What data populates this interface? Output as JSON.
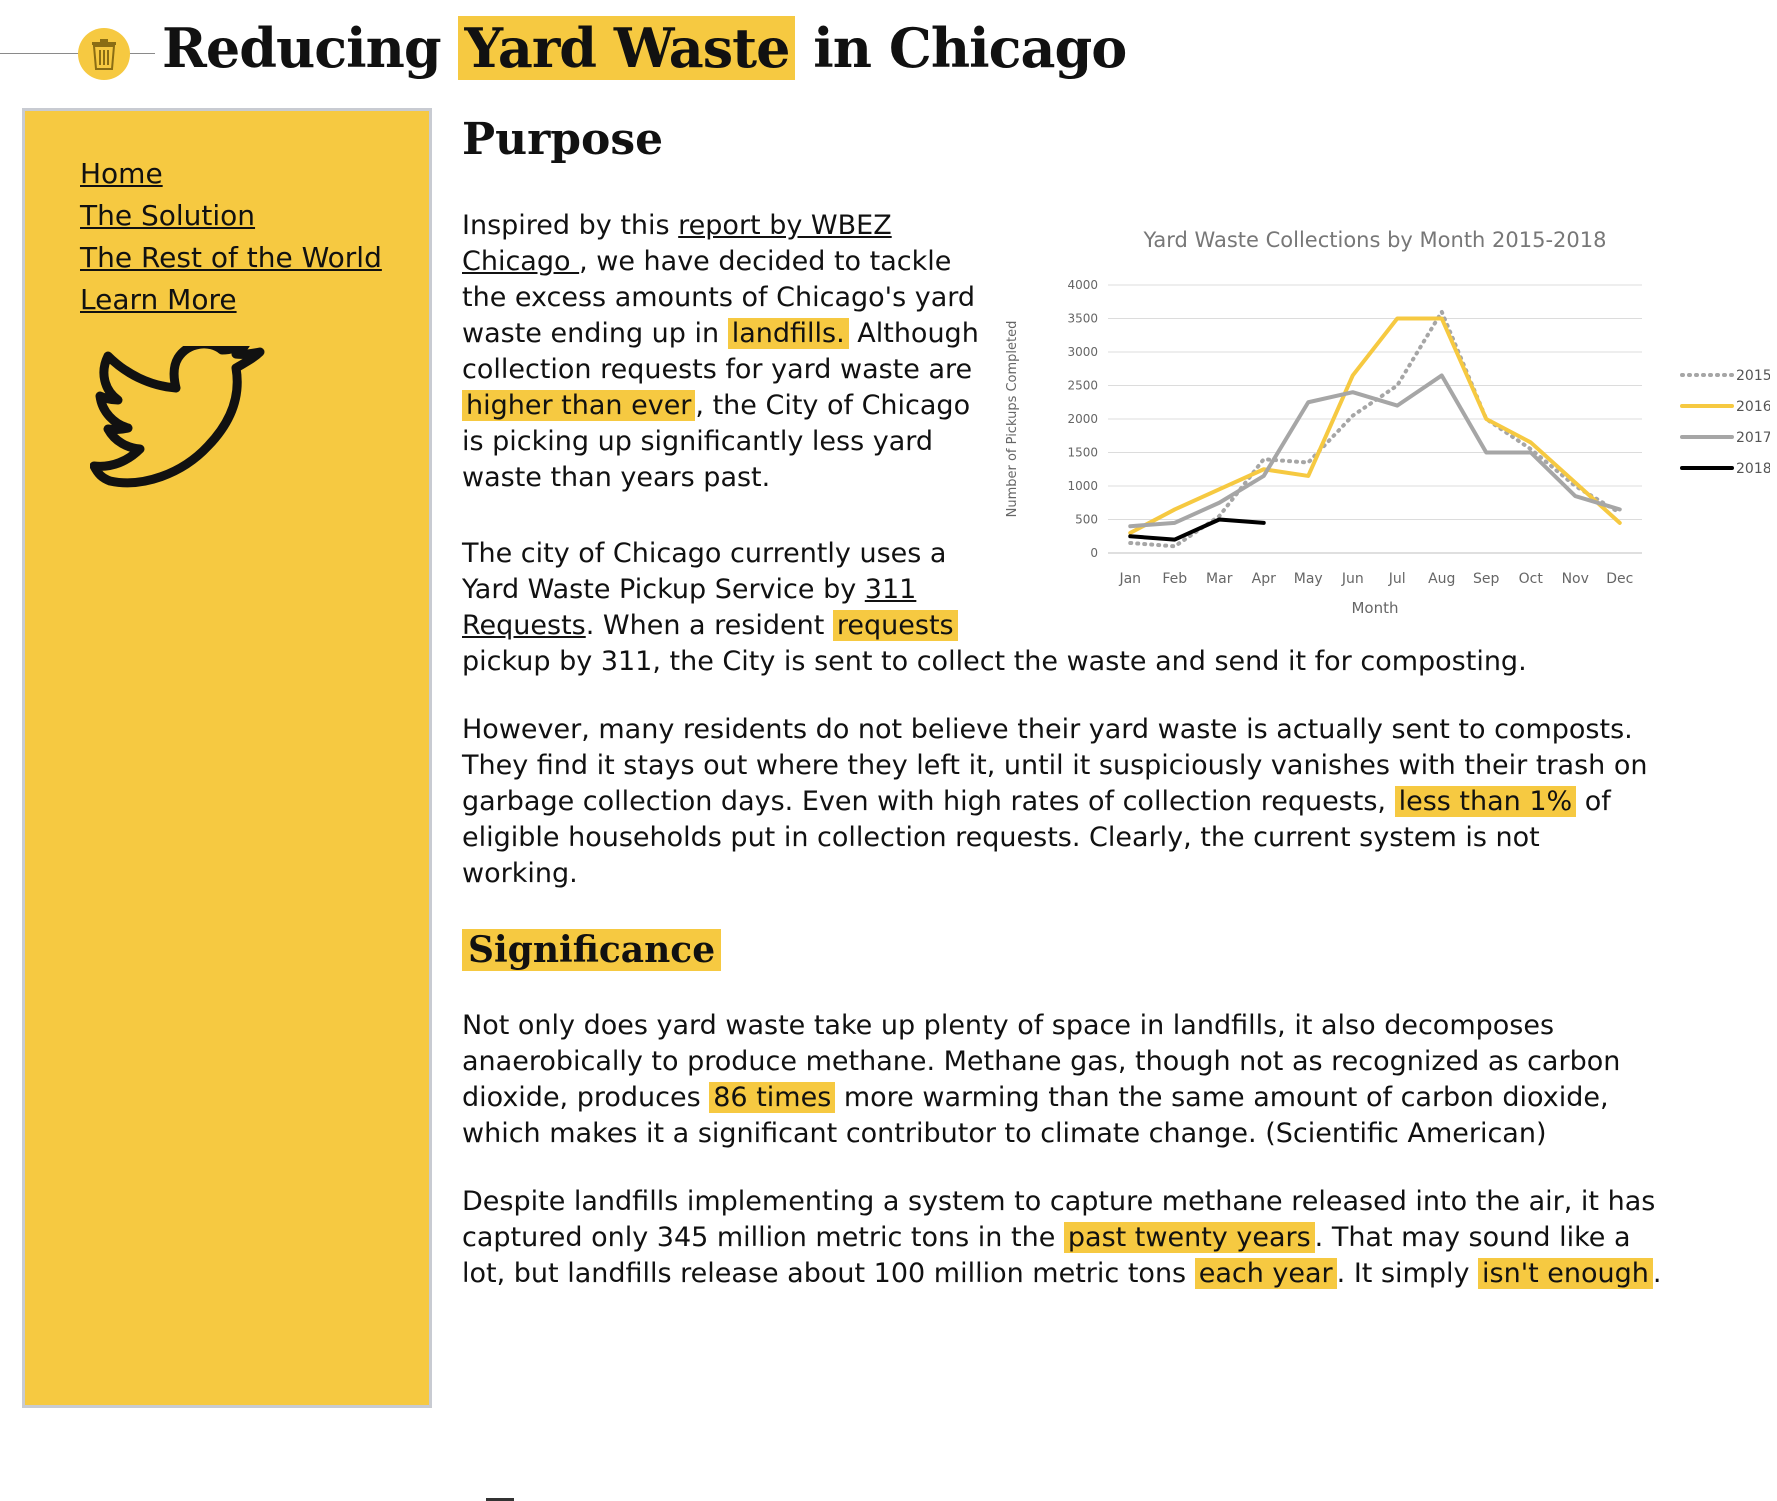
{
  "header": {
    "title_before": "Reducing",
    "title_highlight": "Yard Waste",
    "title_after": "in Chicago",
    "icon": "trash-can-icon"
  },
  "sidebar": {
    "links": [
      "Home",
      "The Solution",
      "The Rest of the World",
      "Learn More"
    ],
    "social_icon": "twitter-bird-icon"
  },
  "purpose": {
    "heading": "Purpose",
    "p1": {
      "t1": "Inspired by this ",
      "link": "report by WBEZ Chicago ",
      "t2": ", we have decided to tackle the excess amounts of Chicago's yard waste ending up in ",
      "h1": "landfills.",
      "t3": " Although collection requests for yard waste are ",
      "h2": "higher than ever",
      "t4": ", the City of Chicago is picking up significantly less yard waste than years past."
    },
    "p2": {
      "t1": "The city of Chicago currently uses a Yard Waste Pickup Service by ",
      "link": "311 Requests",
      "t2": ". When a resident ",
      "h1": "requests",
      "t3": " pickup by 311, the City is sent to collect the waste and send it for composting."
    },
    "p3": {
      "t1": "However, many residents do not believe their yard waste is actually sent to composts. They find it stays out where they left it, until it suspiciously vanishes with their trash on garbage collection days. Even with high rates of collection requests, ",
      "h1": "less than 1%",
      "t2": " of eligible households put in collection requests. Clearly, the current system is not working."
    }
  },
  "significance": {
    "heading": "Significance",
    "p1": {
      "t1": "Not only does yard waste take up plenty of space in landfills, it also decomposes anaerobically to produce methane. Methane gas, though not as recognized as carbon dioxide, produces ",
      "h1": "86 times",
      "t2": " more warming than the same amount of carbon dioxide, which makes it a significant contributor to climate change. (Scientific American)"
    },
    "p2": {
      "t1": "Despite landfills implementing a system to capture methane released into the air, it has captured only 345 million metric tons in the ",
      "h1": "past twenty years",
      "t2": ". That may sound like a lot, but landfills release about 100 million metric tons ",
      "h2": "each year",
      "t3": ". It simply ",
      "h3": "isn't enough",
      "t4": "."
    }
  },
  "colors": {
    "highlight": "#f6c941",
    "sidebar_bg": "#f6c941",
    "sidebar_border": "#c8cbd2"
  },
  "chart_data": {
    "type": "line",
    "title": "Yard Waste Collections by Month 2015-2018",
    "xlabel": "Month",
    "ylabel": "Number of Pickups Completed",
    "categories": [
      "Jan",
      "Feb",
      "Mar",
      "Apr",
      "May",
      "Jun",
      "Jul",
      "Aug",
      "Sep",
      "Oct",
      "Nov",
      "Dec"
    ],
    "ylim": [
      0,
      4000
    ],
    "yticks": [
      0,
      500,
      1000,
      1500,
      2000,
      2500,
      3000,
      3500,
      4000
    ],
    "grid": true,
    "legend_position": "right",
    "series": [
      {
        "name": "2015",
        "color": "#a6a6a6",
        "style": "dotted",
        "values": [
          150,
          100,
          550,
          1400,
          1350,
          2050,
          2500,
          3600,
          2000,
          1550,
          1000,
          600
        ]
      },
      {
        "name": "2016",
        "color": "#f6c941",
        "style": "solid",
        "values": [
          300,
          650,
          950,
          1250,
          1150,
          2650,
          3500,
          3500,
          2000,
          1650,
          1050,
          450
        ]
      },
      {
        "name": "2017",
        "color": "#a6a6a6",
        "style": "solid",
        "values": [
          400,
          450,
          750,
          1150,
          2250,
          2400,
          2200,
          2650,
          1500,
          1500,
          850,
          650
        ]
      },
      {
        "name": "2018",
        "color": "#000000",
        "style": "solid",
        "values": [
          250,
          200,
          500,
          450,
          null,
          null,
          null,
          null,
          null,
          null,
          null,
          null
        ]
      }
    ]
  }
}
